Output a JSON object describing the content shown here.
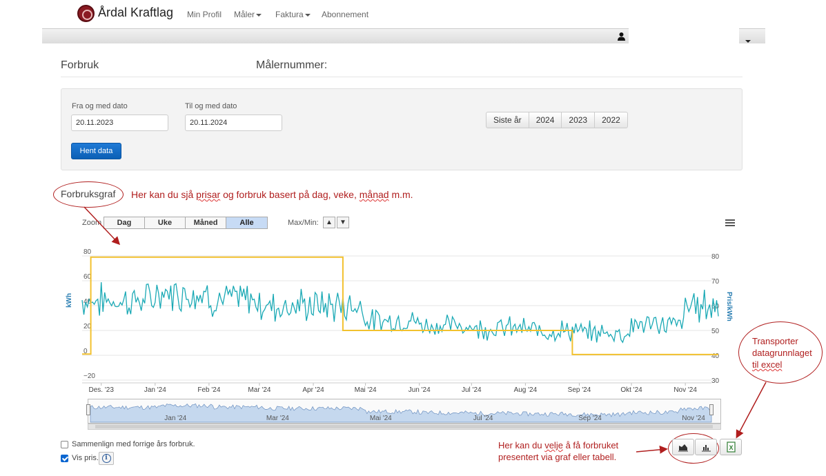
{
  "brand": {
    "name": "Årdal Kraftlag",
    "logo_icon": "aardal-logo-icon"
  },
  "nav": {
    "items": [
      "Min Profil",
      "Måler",
      "Faktura",
      "Abonnement"
    ]
  },
  "header": {
    "title": "Forbruk",
    "meter_label": "Målernummer:"
  },
  "filter": {
    "from_label": "Fra og med dato",
    "from_value": "20.11.2023",
    "to_label": "Til og med dato",
    "to_value": "20.11.2024",
    "fetch_button": "Hent data",
    "quick_ranges": [
      "Siste år",
      "2024",
      "2023",
      "2022"
    ]
  },
  "graph": {
    "title": "Forbruksgraf",
    "zoom_label": "Zoom",
    "zoom_options": [
      "Dag",
      "Uke",
      "Måned",
      "Alle"
    ],
    "zoom_active": "Alle",
    "maxmin_label": "Max/Min:"
  },
  "annotations": {
    "graph_note": "Her kan du sjå prisar og forbruk basert på dag, veke, månad m.m.",
    "excel_note": [
      "Transporter",
      "datagrunnlaget",
      "til excel"
    ],
    "view_note": [
      "Her kan du velje å få forbruket",
      "presentert via graf eller tabell."
    ]
  },
  "options": {
    "compare_label": "Sammenlign med forrige års forbruk.",
    "compare_checked": false,
    "show_price_label": "Vis pris.",
    "show_price_checked": true
  },
  "colors": {
    "consumption": "#1aa9b5",
    "price": "#f2c12e",
    "annotation": "#b01e1e",
    "primary_button": "#0b5fb5"
  },
  "chart_data": {
    "type": "line",
    "ylabel": "kWh",
    "y2label": "Pris/kWh",
    "ylim": [
      -20,
      90
    ],
    "y2lim": [
      30,
      85
    ],
    "y_ticks": [
      -20,
      0,
      20,
      40,
      60,
      80
    ],
    "y2_ticks": [
      30,
      40,
      50,
      60,
      70,
      80
    ],
    "x_ticks": [
      "Des. '23",
      "Jan '24",
      "Feb '24",
      "Mar '24",
      "Apr '24",
      "Mai '24",
      "Jun '24",
      "Jul '24",
      "Aug '24",
      "Sep '24",
      "Okt '24",
      "Nov '24"
    ],
    "navigator_ticks": [
      "Jan '24",
      "Mar '24",
      "Mai '24",
      "Jul '24",
      "Sep '24",
      "Nov '24"
    ],
    "grid": true,
    "series": [
      {
        "name": "Forbruk",
        "axis": "left",
        "monthly_levels": [
          {
            "month": "Des. '23",
            "value": 44
          },
          {
            "month": "Jan '24",
            "value": 50
          },
          {
            "month": "Feb '24",
            "value": 45
          },
          {
            "month": "Mar '24",
            "value": 40
          },
          {
            "month": "Apr '24",
            "value": 40
          },
          {
            "month": "Mai '24",
            "value": 28
          },
          {
            "month": "Jun '24",
            "value": 24
          },
          {
            "month": "Jul '24",
            "value": 22
          },
          {
            "month": "Aug '24",
            "value": 20
          },
          {
            "month": "Sep '24",
            "value": 18
          },
          {
            "month": "Okt '24",
            "value": 25
          },
          {
            "month": "Nov '24",
            "value": 40
          }
        ]
      },
      {
        "name": "Pris",
        "axis": "right",
        "steps": [
          {
            "from": "20.11.2023",
            "to": "25.11.2023",
            "value": 40.5
          },
          {
            "from": "25.11.2023",
            "to": "18.04.2024",
            "value": 79.5
          },
          {
            "from": "18.04.2024",
            "to": "28.08.2024",
            "value": 50
          },
          {
            "from": "28.08.2024",
            "to": "20.11.2024",
            "value": 40.3
          }
        ]
      }
    ]
  }
}
